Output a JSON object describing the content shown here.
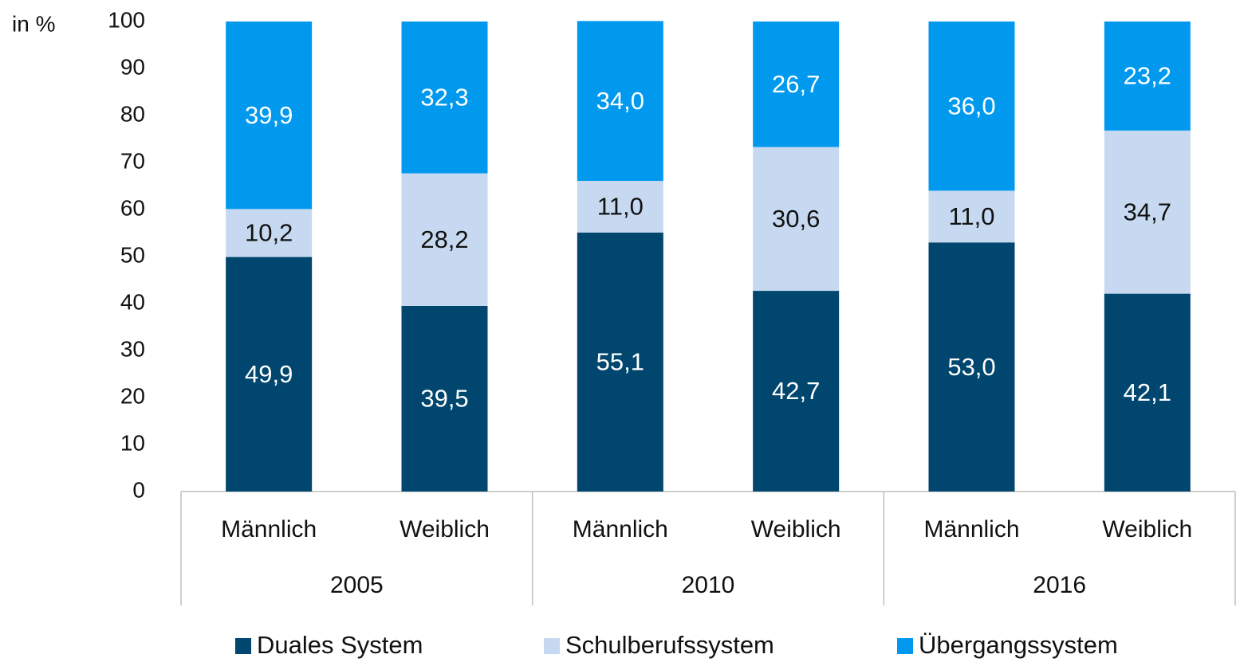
{
  "chart_data": {
    "type": "bar",
    "stacked": true,
    "y_axis_label": "in %",
    "categories": [
      "Männlich",
      "Weiblich",
      "Männlich",
      "Weiblich",
      "Männlich",
      "Weiblich"
    ],
    "groups": [
      "2005",
      "2010",
      "2016"
    ],
    "series": [
      {
        "name": "Duales System",
        "color": "#00466e",
        "label_color": "#ffffff",
        "values": [
          49.9,
          39.5,
          55.1,
          42.7,
          53.0,
          42.1
        ],
        "value_labels": [
          "49,9",
          "39,5",
          "55,1",
          "42,7",
          "53,0",
          "42,1"
        ]
      },
      {
        "name": "Schulberufssystem",
        "color": "#c6d9f0",
        "label_color": "#111111",
        "values": [
          10.2,
          28.2,
          11.0,
          30.6,
          11.0,
          34.7
        ],
        "value_labels": [
          "10,2",
          "28,2",
          "11,0",
          "30,6",
          "11,0",
          "34,7"
        ]
      },
      {
        "name": "Übergangssystem",
        "color": "#0099ee",
        "label_color": "#ffffff",
        "values": [
          39.9,
          32.3,
          34.0,
          26.7,
          36.0,
          23.2
        ],
        "value_labels": [
          "39,9",
          "32,3",
          "34,0",
          "26,7",
          "36,0",
          "23,2"
        ]
      }
    ],
    "ylim": [
      0,
      100
    ],
    "yticks": [
      0,
      10,
      20,
      30,
      40,
      50,
      60,
      70,
      80,
      90,
      100
    ],
    "legend": "bottom"
  }
}
